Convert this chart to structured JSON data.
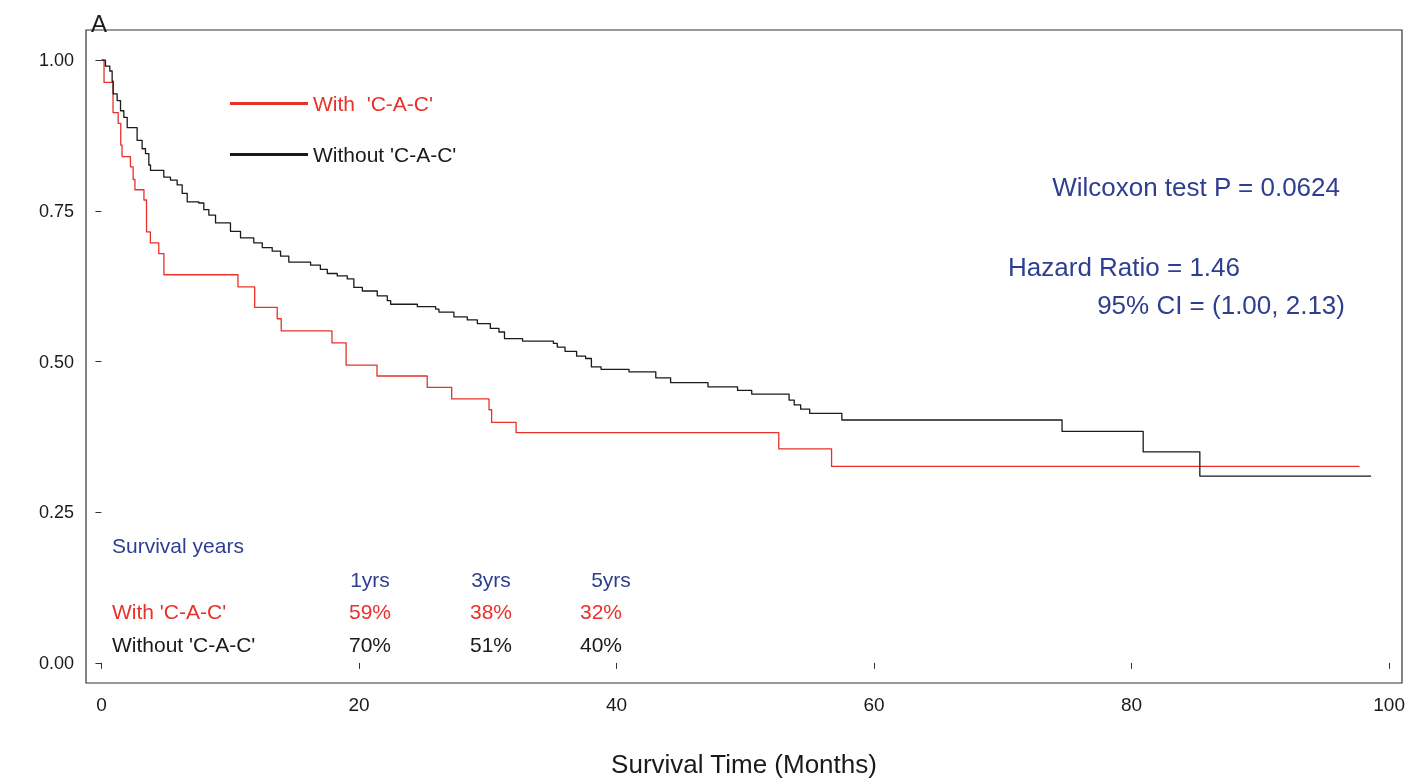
{
  "chart_data": {
    "type": "step",
    "title": "A",
    "xlabel": "Survival Time (Months)",
    "xlim": [
      -1.2,
      101
    ],
    "xticks": [
      0,
      20,
      40,
      60,
      80,
      100
    ],
    "ylim": [
      -0.03,
      1.05
    ],
    "yticks": [
      {
        "value": 0,
        "label": "0.00"
      },
      {
        "value": 0.25,
        "label": "0.25"
      },
      {
        "value": 0.5,
        "label": "0.50"
      },
      {
        "value": 0.75,
        "label": "0.75"
      },
      {
        "value": 1,
        "label": "1.00"
      }
    ],
    "grid": false,
    "legend": "top left",
    "line_style": "solid",
    "marker": "none",
    "series": [
      {
        "name": "With  'C-A-C'",
        "color": "#e8312a",
        "x": [
          0,
          0.2,
          0.9,
          1.3,
          1.5,
          1.6,
          2.25,
          2.46,
          2.6,
          3.3,
          3.5,
          3.8,
          4.45,
          4.85,
          10.6,
          11.9,
          13.65,
          13.96,
          17.9,
          19.0,
          21.4,
          25.3,
          27.2,
          30.1,
          30.3,
          32.2,
          52.6,
          56.7,
          97.7
        ],
        "values": [
          1.0,
          0.963,
          0.913,
          0.895,
          0.859,
          0.84,
          0.823,
          0.802,
          0.785,
          0.768,
          0.715,
          0.697,
          0.679,
          0.644,
          0.624,
          0.59,
          0.571,
          0.551,
          0.531,
          0.494,
          0.476,
          0.457,
          0.438,
          0.42,
          0.399,
          0.382,
          0.355,
          0.326,
          0.326
        ]
      },
      {
        "name": "Without 'C-A-C'",
        "color": "#1a1a1a",
        "x": [
          0,
          0.31,
          0.65,
          0.83,
          0.91,
          1.22,
          1.48,
          1.74,
          2.0,
          2.77,
          3.16,
          3.42,
          3.68,
          3.81,
          4.84,
          5.36,
          5.88,
          6.27,
          6.66,
          7.56,
          7.95,
          8.34,
          8.86,
          10.02,
          10.8,
          11.83,
          12.49,
          13.26,
          13.91,
          14.55,
          16.24,
          17.0,
          17.54,
          18.31,
          19.09,
          19.6,
          20.26,
          21.42,
          22.2,
          22.46,
          24.53,
          25.95,
          26.21,
          27.37,
          28.41,
          29.19,
          30.2,
          30.87,
          31.3,
          32.7,
          35.1,
          35.4,
          36.0,
          36.9,
          37.6,
          38.05,
          38.8,
          40.97,
          43.05,
          44.2,
          47.1,
          49.4,
          50.5,
          53.4,
          53.8,
          54.3,
          55.0,
          57.5,
          74.6,
          80.9,
          85.3,
          98.6
        ],
        "values": [
          1.0,
          0.99,
          0.982,
          0.965,
          0.944,
          0.933,
          0.916,
          0.905,
          0.888,
          0.867,
          0.853,
          0.845,
          0.826,
          0.817,
          0.806,
          0.801,
          0.793,
          0.779,
          0.765,
          0.763,
          0.752,
          0.743,
          0.73,
          0.716,
          0.705,
          0.697,
          0.689,
          0.683,
          0.675,
          0.665,
          0.66,
          0.653,
          0.646,
          0.642,
          0.637,
          0.623,
          0.617,
          0.609,
          0.601,
          0.595,
          0.591,
          0.587,
          0.582,
          0.574,
          0.569,
          0.563,
          0.555,
          0.549,
          0.538,
          0.534,
          0.53,
          0.524,
          0.517,
          0.509,
          0.505,
          0.491,
          0.487,
          0.483,
          0.473,
          0.465,
          0.458,
          0.452,
          0.446,
          0.436,
          0.428,
          0.421,
          0.414,
          0.403,
          0.384,
          0.35,
          0.31,
          0.31
        ]
      }
    ],
    "annotations": [
      "Wilcoxon test P = 0.0624",
      "Hazard Ratio = 1.46",
      "95% CI = (1.00, 2.13)",
      "Survival years",
      "1yrs",
      "3yrs",
      "5yrs",
      "With 'C-A-C'",
      "59%",
      "38%",
      "32%",
      "Without 'C-A-C'",
      "70%",
      "51%",
      "40%"
    ]
  }
}
